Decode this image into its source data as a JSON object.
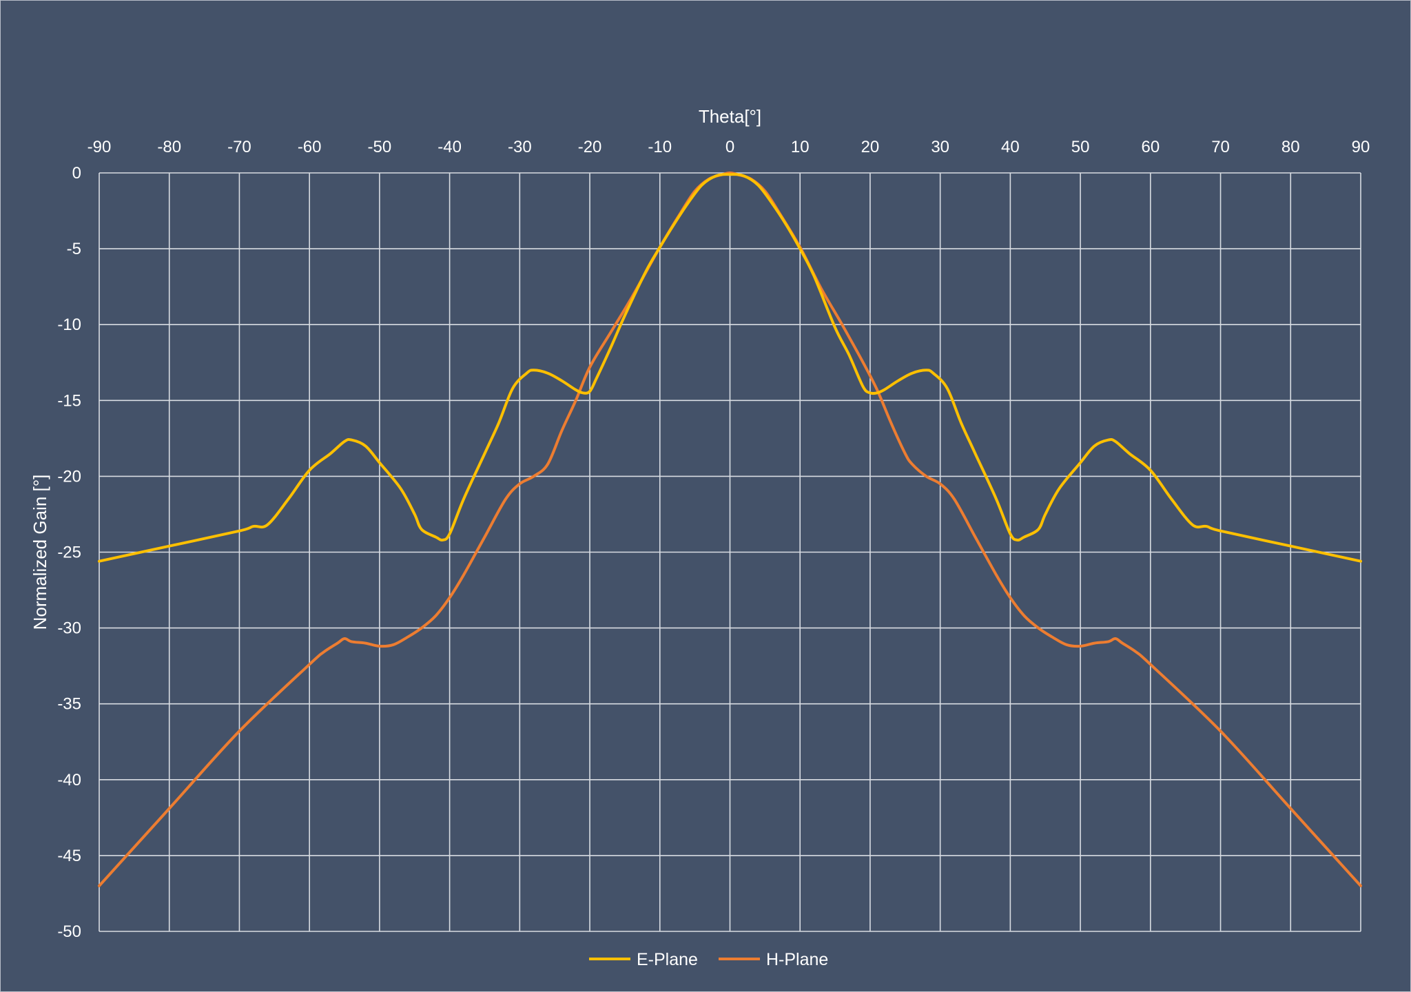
{
  "chart_data": {
    "type": "line",
    "xlabel": "Theta[°]",
    "ylabel": "Normalized Gain [°]",
    "xlim": [
      -90,
      90
    ],
    "ylim": [
      -50,
      0
    ],
    "xticks": [
      "-90",
      "-80",
      "-70",
      "-60",
      "-50",
      "-40",
      "-30",
      "-20",
      "-10",
      "0",
      "10",
      "20",
      "30",
      "40",
      "50",
      "60",
      "70",
      "80",
      "90"
    ],
    "yticks": [
      "0",
      "-5",
      "-10",
      "-15",
      "-20",
      "-25",
      "-30",
      "-35",
      "-40",
      "-45",
      "-50"
    ],
    "grid": true,
    "x_axis_position": "top",
    "legend_position": "bottom",
    "series": [
      {
        "name": "E-Plane",
        "color": "#FFC000",
        "points": [
          [
            -90,
            -25.6
          ],
          [
            -80,
            -24.6
          ],
          [
            -70,
            -23.6
          ],
          [
            -68,
            -23.3
          ],
          [
            -66,
            -23.2
          ],
          [
            -63,
            -21.5
          ],
          [
            -60,
            -19.6
          ],
          [
            -57,
            -18.5
          ],
          [
            -55,
            -17.7
          ],
          [
            -54,
            -17.6
          ],
          [
            -52,
            -18.0
          ],
          [
            -50,
            -19.1
          ],
          [
            -47,
            -20.8
          ],
          [
            -45,
            -22.5
          ],
          [
            -44,
            -23.5
          ],
          [
            -42,
            -24.0
          ],
          [
            -41,
            -24.2
          ],
          [
            -40,
            -23.8
          ],
          [
            -38,
            -21.5
          ],
          [
            -35,
            -18.5
          ],
          [
            -33,
            -16.5
          ],
          [
            -31,
            -14.2
          ],
          [
            -29,
            -13.2
          ],
          [
            -28,
            -13.0
          ],
          [
            -26,
            -13.2
          ],
          [
            -24,
            -13.7
          ],
          [
            -22,
            -14.3
          ],
          [
            -21,
            -14.5
          ],
          [
            -20,
            -14.4
          ],
          [
            -19,
            -13.5
          ],
          [
            -17,
            -11.5
          ],
          [
            -15,
            -9.4
          ],
          [
            -12,
            -6.5
          ],
          [
            -10,
            -4.9
          ],
          [
            -8,
            -3.4
          ],
          [
            -6,
            -2.0
          ],
          [
            -4,
            -0.8
          ],
          [
            -2,
            -0.2
          ],
          [
            0,
            -0.1
          ],
          [
            2,
            -0.2
          ],
          [
            4,
            -0.8
          ],
          [
            6,
            -2.0
          ],
          [
            8,
            -3.4
          ],
          [
            10,
            -5.0
          ],
          [
            12,
            -6.8
          ],
          [
            15,
            -10.2
          ],
          [
            17,
            -12.0
          ],
          [
            19,
            -14.1
          ],
          [
            20,
            -14.5
          ],
          [
            21,
            -14.5
          ],
          [
            22,
            -14.3
          ],
          [
            24,
            -13.7
          ],
          [
            26,
            -13.2
          ],
          [
            28,
            -13.0
          ],
          [
            29,
            -13.2
          ],
          [
            31,
            -14.2
          ],
          [
            33,
            -16.5
          ],
          [
            35,
            -18.5
          ],
          [
            38,
            -21.5
          ],
          [
            40,
            -23.8
          ],
          [
            41,
            -24.2
          ],
          [
            42,
            -24.0
          ],
          [
            44,
            -23.5
          ],
          [
            45,
            -22.5
          ],
          [
            47,
            -20.8
          ],
          [
            50,
            -19.1
          ],
          [
            52,
            -18.0
          ],
          [
            54,
            -17.6
          ],
          [
            55,
            -17.7
          ],
          [
            57,
            -18.5
          ],
          [
            60,
            -19.6
          ],
          [
            63,
            -21.5
          ],
          [
            66,
            -23.2
          ],
          [
            68,
            -23.3
          ],
          [
            70,
            -23.6
          ],
          [
            80,
            -24.6
          ],
          [
            90,
            -25.6
          ]
        ]
      },
      {
        "name": "H-Plane",
        "color": "#ED7D31",
        "points": [
          [
            -90,
            -47.0
          ],
          [
            -80,
            -41.9
          ],
          [
            -70,
            -36.8
          ],
          [
            -60,
            -32.4
          ],
          [
            -58,
            -31.6
          ],
          [
            -56,
            -31.0
          ],
          [
            -55,
            -30.7
          ],
          [
            -54,
            -30.9
          ],
          [
            -52,
            -31.0
          ],
          [
            -50,
            -31.2
          ],
          [
            -48,
            -31.1
          ],
          [
            -46,
            -30.6
          ],
          [
            -44,
            -30.0
          ],
          [
            -42,
            -29.2
          ],
          [
            -40,
            -28.0
          ],
          [
            -38,
            -26.5
          ],
          [
            -35,
            -24.0
          ],
          [
            -32,
            -21.5
          ],
          [
            -30,
            -20.5
          ],
          [
            -28,
            -20.0
          ],
          [
            -26,
            -19.2
          ],
          [
            -24,
            -17.0
          ],
          [
            -22,
            -15.0
          ],
          [
            -20,
            -12.8
          ],
          [
            -17,
            -10.5
          ],
          [
            -14,
            -8.2
          ],
          [
            -10,
            -4.9
          ],
          [
            -7,
            -2.6
          ],
          [
            -5,
            -1.2
          ],
          [
            -3,
            -0.4
          ],
          [
            -1,
            -0.1
          ],
          [
            0,
            0.0
          ],
          [
            1,
            -0.1
          ],
          [
            3,
            -0.4
          ],
          [
            5,
            -1.2
          ],
          [
            7,
            -2.6
          ],
          [
            10,
            -4.9
          ],
          [
            13,
            -7.6
          ],
          [
            16,
            -10.0
          ],
          [
            19,
            -12.5
          ],
          [
            21,
            -14.3
          ],
          [
            23,
            -16.5
          ],
          [
            25,
            -18.5
          ],
          [
            26,
            -19.2
          ],
          [
            28,
            -20.0
          ],
          [
            30,
            -20.5
          ],
          [
            32,
            -21.5
          ],
          [
            35,
            -24.0
          ],
          [
            38,
            -26.5
          ],
          [
            40,
            -28.0
          ],
          [
            42,
            -29.2
          ],
          [
            44,
            -30.0
          ],
          [
            46,
            -30.6
          ],
          [
            48,
            -31.1
          ],
          [
            50,
            -31.2
          ],
          [
            52,
            -31.0
          ],
          [
            54,
            -30.9
          ],
          [
            55,
            -30.7
          ],
          [
            56,
            -31.0
          ],
          [
            58,
            -31.6
          ],
          [
            60,
            -32.4
          ],
          [
            70,
            -36.8
          ],
          [
            80,
            -41.9
          ],
          [
            90,
            -47.0
          ]
        ]
      }
    ]
  }
}
